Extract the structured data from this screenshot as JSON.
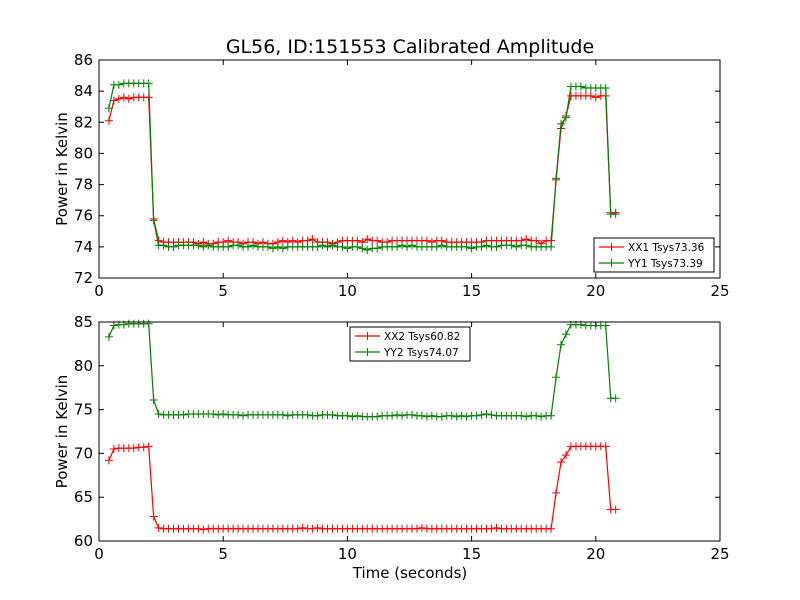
{
  "figure": {
    "title": "GL56, ID:151553 Calibrated Amplitude",
    "xlabel": "Time (seconds)"
  },
  "colors": {
    "red": "#ff0000",
    "green": "#008000"
  },
  "chart_data": [
    {
      "type": "line",
      "ylabel": "Power in Kelvin",
      "xlim": [
        0,
        25
      ],
      "ylim": [
        72,
        86
      ],
      "xticks": [
        "0",
        "5",
        "10",
        "15",
        "20",
        "25"
      ],
      "yticks": [
        "72",
        "74",
        "76",
        "78",
        "80",
        "82",
        "84",
        "86"
      ],
      "legend": "bottom-right",
      "series": [
        {
          "name": "XX1 Tsys73.36",
          "color": "#ff0000",
          "x": [
            0.4,
            0.6,
            0.8,
            1.0,
            1.2,
            1.4,
            1.6,
            1.8,
            2.0,
            2.2,
            2.4,
            2.6,
            2.8,
            3.0,
            3.2,
            3.4,
            3.6,
            3.8,
            4.0,
            4.2,
            4.4,
            4.6,
            4.8,
            5.0,
            5.2,
            5.4,
            5.6,
            5.8,
            6.0,
            6.2,
            6.4,
            6.6,
            6.8,
            7.0,
            7.2,
            7.4,
            7.6,
            7.8,
            8.0,
            8.2,
            8.4,
            8.6,
            8.8,
            9.0,
            9.2,
            9.4,
            9.6,
            9.8,
            10.0,
            10.2,
            10.4,
            10.6,
            10.8,
            11.0,
            11.2,
            11.4,
            11.6,
            11.8,
            12.0,
            12.2,
            12.4,
            12.6,
            12.8,
            13.0,
            13.2,
            13.4,
            13.6,
            13.8,
            14.0,
            14.2,
            14.4,
            14.6,
            14.8,
            15.0,
            15.2,
            15.4,
            15.6,
            15.8,
            16.0,
            16.2,
            16.4,
            16.6,
            16.8,
            17.0,
            17.2,
            17.4,
            17.6,
            17.8,
            18.0,
            18.2,
            18.4,
            18.6,
            18.8,
            19.0,
            19.2,
            19.4,
            19.6,
            19.8,
            20.0,
            20.2,
            20.4,
            20.6,
            20.8
          ],
          "y": [
            82.1,
            83.4,
            83.5,
            83.6,
            83.5,
            83.6,
            83.6,
            83.6,
            83.6,
            75.8,
            74.4,
            74.3,
            74.3,
            74.3,
            74.3,
            74.3,
            74.3,
            74.3,
            74.2,
            74.3,
            74.2,
            74.2,
            74.3,
            74.3,
            74.4,
            74.3,
            74.3,
            74.2,
            74.3,
            74.3,
            74.2,
            74.3,
            74.2,
            74.2,
            74.3,
            74.4,
            74.3,
            74.4,
            74.3,
            74.4,
            74.4,
            74.5,
            74.3,
            74.3,
            74.3,
            74.2,
            74.3,
            74.4,
            74.4,
            74.4,
            74.4,
            74.3,
            74.5,
            74.4,
            74.4,
            74.3,
            74.3,
            74.4,
            74.4,
            74.4,
            74.4,
            74.4,
            74.4,
            74.4,
            74.4,
            74.3,
            74.4,
            74.4,
            74.3,
            74.3,
            74.3,
            74.3,
            74.3,
            74.3,
            74.3,
            74.3,
            74.4,
            74.4,
            74.4,
            74.4,
            74.4,
            74.4,
            74.4,
            74.4,
            74.5,
            74.4,
            74.4,
            74.2,
            74.4,
            74.4,
            78.3,
            81.6,
            82.4,
            83.7,
            83.7,
            83.7,
            83.7,
            83.7,
            83.6,
            83.7,
            83.7,
            76.2,
            76.2
          ]
        },
        {
          "name": "YY1 Tsys73.39",
          "color": "#008000",
          "x": [
            0.4,
            0.6,
            0.8,
            1.0,
            1.2,
            1.4,
            1.6,
            1.8,
            2.0,
            2.2,
            2.4,
            2.6,
            2.8,
            3.0,
            3.2,
            3.4,
            3.6,
            3.8,
            4.0,
            4.2,
            4.4,
            4.6,
            4.8,
            5.0,
            5.2,
            5.4,
            5.6,
            5.8,
            6.0,
            6.2,
            6.4,
            6.6,
            6.8,
            7.0,
            7.2,
            7.4,
            7.6,
            7.8,
            8.0,
            8.2,
            8.4,
            8.6,
            8.8,
            9.0,
            9.2,
            9.4,
            9.6,
            9.8,
            10.0,
            10.2,
            10.4,
            10.6,
            10.8,
            11.0,
            11.2,
            11.4,
            11.6,
            11.8,
            12.0,
            12.2,
            12.4,
            12.6,
            12.8,
            13.0,
            13.2,
            13.4,
            13.6,
            13.8,
            14.0,
            14.2,
            14.4,
            14.6,
            14.8,
            15.0,
            15.2,
            15.4,
            15.6,
            15.8,
            16.0,
            16.2,
            16.4,
            16.6,
            16.8,
            17.0,
            17.2,
            17.4,
            17.6,
            17.8,
            18.0,
            18.2,
            18.4,
            18.6,
            18.8,
            19.0,
            19.2,
            19.4,
            19.6,
            19.8,
            20.0,
            20.2,
            20.4,
            20.6,
            20.8
          ],
          "y": [
            82.9,
            84.4,
            84.4,
            84.5,
            84.5,
            84.5,
            84.5,
            84.5,
            84.5,
            75.7,
            74.1,
            74.1,
            74.0,
            74.0,
            74.1,
            74.1,
            74.1,
            74.1,
            74.1,
            74.0,
            74.1,
            74.0,
            74.0,
            74.0,
            74.0,
            74.1,
            74.1,
            74.0,
            74.0,
            74.1,
            74.0,
            74.0,
            74.0,
            73.9,
            74.0,
            73.9,
            74.0,
            74.0,
            74.0,
            74.0,
            74.0,
            74.0,
            74.0,
            74.1,
            74.0,
            74.1,
            74.0,
            74.0,
            73.9,
            74.0,
            74.0,
            73.9,
            73.8,
            73.9,
            73.9,
            74.0,
            74.0,
            74.0,
            74.0,
            74.1,
            74.0,
            74.1,
            74.0,
            74.0,
            74.0,
            74.0,
            74.0,
            74.1,
            74.0,
            74.0,
            74.0,
            74.0,
            74.0,
            73.9,
            74.0,
            74.0,
            74.1,
            74.0,
            74.0,
            74.1,
            74.1,
            74.1,
            74.0,
            74.1,
            74.1,
            74.0,
            74.0,
            74.0,
            74.0,
            74.0,
            78.4,
            81.9,
            82.3,
            84.3,
            84.3,
            84.3,
            84.2,
            84.2,
            84.2,
            84.2,
            84.2,
            76.1,
            76.1
          ]
        }
      ]
    },
    {
      "type": "line",
      "ylabel": "Power in Kelvin",
      "xlabel": "Time (seconds)",
      "xlim": [
        0,
        25
      ],
      "ylim": [
        60,
        85
      ],
      "xticks": [
        "0",
        "5",
        "10",
        "15",
        "20",
        "25"
      ],
      "yticks": [
        "60",
        "65",
        "70",
        "75",
        "80",
        "85"
      ],
      "legend": "top-center",
      "series": [
        {
          "name": "XX2 Tsys60.82",
          "color": "#ff0000",
          "x": [
            0.4,
            0.6,
            0.8,
            1.0,
            1.2,
            1.4,
            1.6,
            1.8,
            2.0,
            2.2,
            2.4,
            2.6,
            2.8,
            3.0,
            3.2,
            3.4,
            3.6,
            3.8,
            4.0,
            4.2,
            4.4,
            4.6,
            4.8,
            5.0,
            5.2,
            5.4,
            5.6,
            5.8,
            6.0,
            6.2,
            6.4,
            6.6,
            6.8,
            7.0,
            7.2,
            7.4,
            7.6,
            7.8,
            8.0,
            8.2,
            8.4,
            8.6,
            8.8,
            9.0,
            9.2,
            9.4,
            9.6,
            9.8,
            10.0,
            10.2,
            10.4,
            10.6,
            10.8,
            11.0,
            11.2,
            11.4,
            11.6,
            11.8,
            12.0,
            12.2,
            12.4,
            12.6,
            12.8,
            13.0,
            13.2,
            13.4,
            13.6,
            13.8,
            14.0,
            14.2,
            14.4,
            14.6,
            14.8,
            15.0,
            15.2,
            15.4,
            15.6,
            15.8,
            16.0,
            16.2,
            16.4,
            16.6,
            16.8,
            17.0,
            17.2,
            17.4,
            17.6,
            17.8,
            18.0,
            18.2,
            18.4,
            18.6,
            18.8,
            19.0,
            19.2,
            19.4,
            19.6,
            19.8,
            20.0,
            20.2,
            20.4,
            20.6,
            20.8
          ],
          "y": [
            69.2,
            70.5,
            70.6,
            70.6,
            70.6,
            70.6,
            70.7,
            70.7,
            70.8,
            62.8,
            61.5,
            61.4,
            61.4,
            61.4,
            61.4,
            61.4,
            61.4,
            61.4,
            61.4,
            61.3,
            61.4,
            61.4,
            61.4,
            61.4,
            61.4,
            61.4,
            61.4,
            61.4,
            61.4,
            61.4,
            61.4,
            61.4,
            61.4,
            61.4,
            61.4,
            61.4,
            61.4,
            61.4,
            61.4,
            61.5,
            61.4,
            61.4,
            61.5,
            61.4,
            61.4,
            61.4,
            61.4,
            61.4,
            61.4,
            61.4,
            61.4,
            61.4,
            61.4,
            61.4,
            61.4,
            61.4,
            61.4,
            61.4,
            61.4,
            61.4,
            61.4,
            61.4,
            61.4,
            61.5,
            61.4,
            61.4,
            61.4,
            61.4,
            61.4,
            61.4,
            61.4,
            61.4,
            61.4,
            61.4,
            61.4,
            61.4,
            61.4,
            61.4,
            61.5,
            61.4,
            61.4,
            61.4,
            61.4,
            61.4,
            61.4,
            61.4,
            61.4,
            61.4,
            61.4,
            61.4,
            65.5,
            69.0,
            69.8,
            70.8,
            70.8,
            70.8,
            70.8,
            70.8,
            70.8,
            70.8,
            70.8,
            63.6,
            63.6
          ]
        },
        {
          "name": "YY2 Tsys74.07",
          "color": "#008000",
          "x": [
            0.4,
            0.6,
            0.8,
            1.0,
            1.2,
            1.4,
            1.6,
            1.8,
            2.0,
            2.2,
            2.4,
            2.6,
            2.8,
            3.0,
            3.2,
            3.4,
            3.6,
            3.8,
            4.0,
            4.2,
            4.4,
            4.6,
            4.8,
            5.0,
            5.2,
            5.4,
            5.6,
            5.8,
            6.0,
            6.2,
            6.4,
            6.6,
            6.8,
            7.0,
            7.2,
            7.4,
            7.6,
            7.8,
            8.0,
            8.2,
            8.4,
            8.6,
            8.8,
            9.0,
            9.2,
            9.4,
            9.6,
            9.8,
            10.0,
            10.2,
            10.4,
            10.6,
            10.8,
            11.0,
            11.2,
            11.4,
            11.6,
            11.8,
            12.0,
            12.2,
            12.4,
            12.6,
            12.8,
            13.0,
            13.2,
            13.4,
            13.6,
            13.8,
            14.0,
            14.2,
            14.4,
            14.6,
            14.8,
            15.0,
            15.2,
            15.4,
            15.6,
            15.8,
            16.0,
            16.2,
            16.4,
            16.6,
            16.8,
            17.0,
            17.2,
            17.4,
            17.6,
            17.8,
            18.0,
            18.2,
            18.4,
            18.6,
            18.8,
            19.0,
            19.2,
            19.4,
            19.6,
            19.8,
            20.0,
            20.2,
            20.4,
            20.6,
            20.8
          ],
          "y": [
            83.3,
            84.6,
            84.7,
            84.7,
            84.8,
            84.8,
            84.8,
            84.8,
            84.8,
            76.1,
            74.5,
            74.4,
            74.4,
            74.4,
            74.4,
            74.4,
            74.5,
            74.5,
            74.5,
            74.5,
            74.5,
            74.5,
            74.4,
            74.5,
            74.4,
            74.4,
            74.4,
            74.3,
            74.4,
            74.4,
            74.4,
            74.4,
            74.4,
            74.4,
            74.4,
            74.4,
            74.3,
            74.4,
            74.4,
            74.4,
            74.4,
            74.3,
            74.3,
            74.4,
            74.4,
            74.4,
            74.3,
            74.3,
            74.3,
            74.2,
            74.3,
            74.2,
            74.2,
            74.2,
            74.2,
            74.3,
            74.3,
            74.3,
            74.4,
            74.3,
            74.4,
            74.4,
            74.3,
            74.3,
            74.2,
            74.3,
            74.2,
            74.2,
            74.3,
            74.3,
            74.2,
            74.3,
            74.2,
            74.3,
            74.3,
            74.4,
            74.5,
            74.4,
            74.3,
            74.3,
            74.3,
            74.3,
            74.3,
            74.3,
            74.2,
            74.3,
            74.3,
            74.2,
            74.3,
            74.3,
            78.7,
            82.4,
            83.6,
            84.7,
            84.7,
            84.7,
            84.6,
            84.6,
            84.6,
            84.6,
            84.6,
            76.3,
            76.3
          ]
        }
      ]
    }
  ]
}
